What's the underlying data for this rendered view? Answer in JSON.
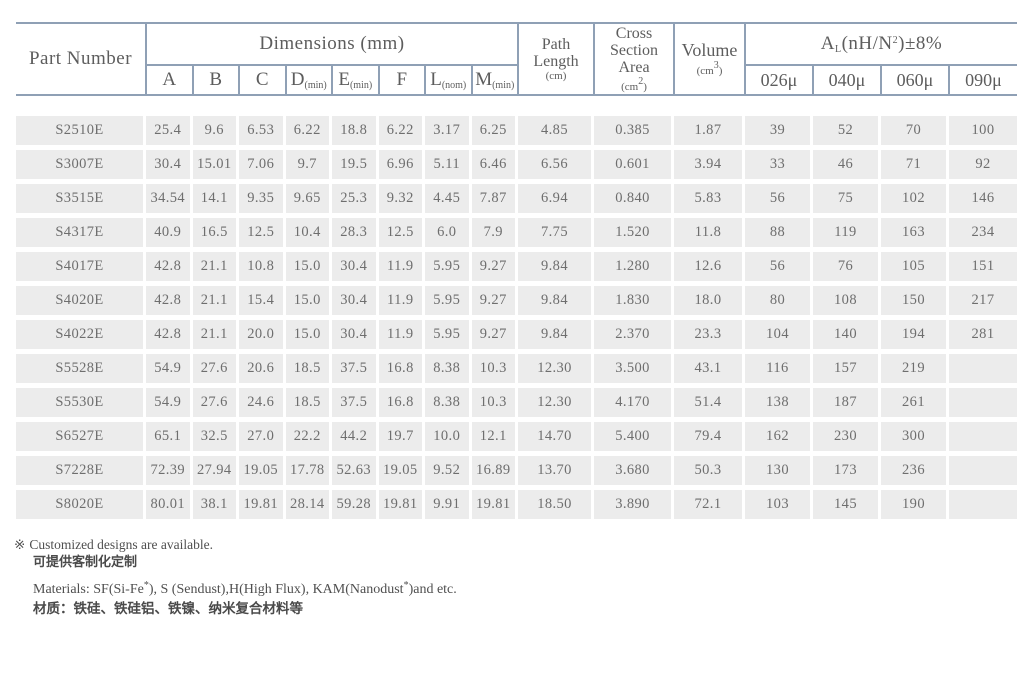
{
  "header": {
    "part_number": "Part Number",
    "dimensions_label": "Dimensions (mm)",
    "dim_cols": [
      {
        "base": "A",
        "sub": ""
      },
      {
        "base": "B",
        "sub": ""
      },
      {
        "base": "C",
        "sub": ""
      },
      {
        "base": "D",
        "sub": "(min)"
      },
      {
        "base": "E",
        "sub": "(min)"
      },
      {
        "base": "F",
        "sub": ""
      },
      {
        "base": "L",
        "sub": "(nom)"
      },
      {
        "base": "M",
        "sub": "(min)"
      }
    ],
    "path_length": {
      "line1": "Path",
      "line2": "Length",
      "unit": "(cm)"
    },
    "cross_section": {
      "line1": "Cross",
      "line2": "Section",
      "line3": "Area",
      "unit_pre": "(cm",
      "unit_sup": "2",
      "unit_post": ")"
    },
    "volume": {
      "line1": "Volume",
      "unit_pre": "(cm",
      "unit_sup": "3",
      "unit_post": ")"
    },
    "al_group": {
      "pre": "A",
      "sub": "L",
      "mid": "(nH/N",
      "sup": "2",
      "post": ")±8%"
    },
    "al_cols": [
      "026μ",
      "040μ",
      "060μ",
      "090μ"
    ]
  },
  "rows": [
    [
      "S2510E",
      "25.4",
      "9.6",
      "6.53",
      "6.22",
      "18.8",
      "6.22",
      "3.17",
      "6.25",
      "4.85",
      "0.385",
      "1.87",
      "39",
      "52",
      "70",
      "100"
    ],
    [
      "S3007E",
      "30.4",
      "15.01",
      "7.06",
      "9.7",
      "19.5",
      "6.96",
      "5.11",
      "6.46",
      "6.56",
      "0.601",
      "3.94",
      "33",
      "46",
      "71",
      "92"
    ],
    [
      "S3515E",
      "34.54",
      "14.1",
      "9.35",
      "9.65",
      "25.3",
      "9.32",
      "4.45",
      "7.87",
      "6.94",
      "0.840",
      "5.83",
      "56",
      "75",
      "102",
      "146"
    ],
    [
      "S4317E",
      "40.9",
      "16.5",
      "12.5",
      "10.4",
      "28.3",
      "12.5",
      "6.0",
      "7.9",
      "7.75",
      "1.520",
      "11.8",
      "88",
      "119",
      "163",
      "234"
    ],
    [
      "S4017E",
      "42.8",
      "21.1",
      "10.8",
      "15.0",
      "30.4",
      "11.9",
      "5.95",
      "9.27",
      "9.84",
      "1.280",
      "12.6",
      "56",
      "76",
      "105",
      "151"
    ],
    [
      "S4020E",
      "42.8",
      "21.1",
      "15.4",
      "15.0",
      "30.4",
      "11.9",
      "5.95",
      "9.27",
      "9.84",
      "1.830",
      "18.0",
      "80",
      "108",
      "150",
      "217"
    ],
    [
      "S4022E",
      "42.8",
      "21.1",
      "20.0",
      "15.0",
      "30.4",
      "11.9",
      "5.95",
      "9.27",
      "9.84",
      "2.370",
      "23.3",
      "104",
      "140",
      "194",
      "281"
    ],
    [
      "S5528E",
      "54.9",
      "27.6",
      "20.6",
      "18.5",
      "37.5",
      "16.8",
      "8.38",
      "10.3",
      "12.30",
      "3.500",
      "43.1",
      "116",
      "157",
      "219",
      ""
    ],
    [
      "S5530E",
      "54.9",
      "27.6",
      "24.6",
      "18.5",
      "37.5",
      "16.8",
      "8.38",
      "10.3",
      "12.30",
      "4.170",
      "51.4",
      "138",
      "187",
      "261",
      ""
    ],
    [
      "S6527E",
      "65.1",
      "32.5",
      "27.0",
      "22.2",
      "44.2",
      "19.7",
      "10.0",
      "12.1",
      "14.70",
      "5.400",
      "79.4",
      "162",
      "230",
      "300",
      ""
    ],
    [
      "S7228E",
      "72.39",
      "27.94",
      "19.05",
      "17.78",
      "52.63",
      "19.05",
      "9.52",
      "16.89",
      "13.70",
      "3.680",
      "50.3",
      "130",
      "173",
      "236",
      ""
    ],
    [
      "S8020E",
      "80.01",
      "38.1",
      "19.81",
      "28.14",
      "59.28",
      "19.81",
      "9.91",
      "19.81",
      "18.50",
      "3.890",
      "72.1",
      "103",
      "145",
      "190",
      ""
    ]
  ],
  "notes": {
    "marker": "※",
    "customized_en": "Customized designs are available.",
    "customized_zh": "可提供客制化定制",
    "materials_pre": "Materials: SF(Si-Fe",
    "materials_sup1": "*",
    "materials_mid": "), S (Sendust),H(High Flux), KAM(Nanodust",
    "materials_sup2": "*",
    "materials_post": ")and etc.",
    "materials_zh": "材质：铁硅、铁硅铝、铁镍、纳米复合材料等"
  },
  "colors": {
    "table_border": "#8fa0b5",
    "row_band": "#ececec",
    "header_text": "#5d5d5d",
    "cell_text": "#6e6e6e",
    "note_text": "#4f4f4f",
    "background": "#ffffff"
  }
}
